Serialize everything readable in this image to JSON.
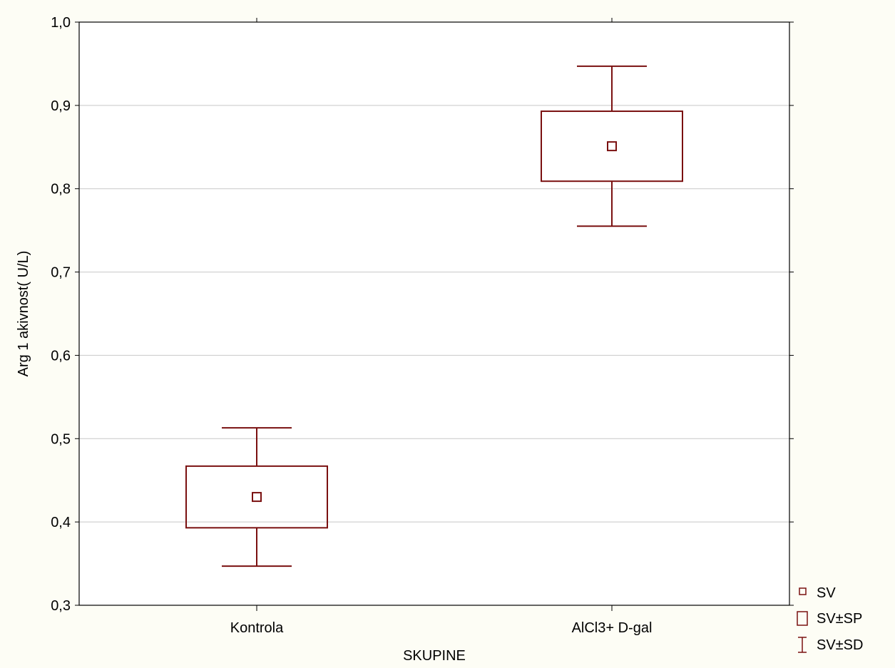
{
  "colors": {
    "background": "#fdfdf5",
    "plot_background": "#ffffff",
    "series": "#7a1010",
    "grid": "#c8c8c8",
    "axis": "#000000"
  },
  "chart_data": {
    "type": "box",
    "xlabel": "SKUPINE",
    "ylabel": "Arg 1 akivnost( U/L)",
    "ylim": [
      0.3,
      1.0
    ],
    "ytick_values": [
      0.3,
      0.4,
      0.5,
      0.6,
      0.7,
      0.8,
      0.9,
      1.0
    ],
    "ytick_labels": [
      "0,3",
      "0,4",
      "0,5",
      "0,6",
      "0,7",
      "0,8",
      "0,9",
      "1,0"
    ],
    "grid": true,
    "legend_position": "bottom-right outside",
    "categories": [
      "Kontrola",
      "AlCl3+ D-gal"
    ],
    "groups": [
      {
        "category": "Kontrola",
        "mean": 0.43,
        "sp_low": 0.393,
        "sp_high": 0.467,
        "sd_low": 0.347,
        "sd_high": 0.513
      },
      {
        "category": "AlCl3+ D-gal",
        "mean": 0.851,
        "sp_low": 0.809,
        "sp_high": 0.893,
        "sd_low": 0.755,
        "sd_high": 0.947
      }
    ],
    "legend": [
      {
        "marker": "point",
        "label": "SV"
      },
      {
        "marker": "box",
        "label": "SV±SP"
      },
      {
        "marker": "whisker",
        "label": "SV±SD"
      }
    ]
  }
}
